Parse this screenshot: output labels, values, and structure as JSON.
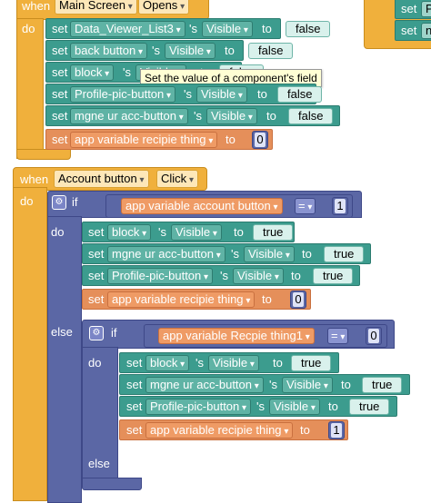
{
  "colors": {
    "event": "#f0b03c",
    "setter": "#3c9c8e",
    "variable": "#e58f5a",
    "control": "#5b67a5"
  },
  "kw": {
    "when": "when",
    "do": "do",
    "set": "set",
    "s": "'s",
    "to": "to",
    "if": "if",
    "else": "else"
  },
  "main_event": {
    "component": "Main Screen",
    "event": "Opens"
  },
  "main_actions": [
    {
      "component": "Data_Viewer_List3",
      "property": "Visible",
      "value": "false"
    },
    {
      "component": "back button",
      "property": "Visible",
      "value": "false"
    },
    {
      "component": "block",
      "property": "Visible",
      "value": "false"
    },
    {
      "component": "Profile-pic-button",
      "property": "Visible",
      "value": "false"
    },
    {
      "component": "mgne ur acc-button",
      "property": "Visible",
      "value": "false"
    }
  ],
  "main_var": {
    "name": "app variable recipie thing",
    "value": "0"
  },
  "tooltip": "Set the value of a component's field",
  "acc_event": {
    "component": "Account button",
    "event": "Click"
  },
  "if1": {
    "var": "app variable account button",
    "op": "=",
    "num": "1"
  },
  "if1_actions": [
    {
      "component": "block",
      "property": "Visible",
      "value": "true"
    },
    {
      "component": "mgne ur acc-button",
      "property": "Visible",
      "value": "true"
    },
    {
      "component": "Profile-pic-button",
      "property": "Visible",
      "value": "true"
    }
  ],
  "if1_var": {
    "name": "app variable recipie thing",
    "value": "0"
  },
  "if2": {
    "var": "app variable Recpie thing1",
    "op": "=",
    "num": "0"
  },
  "if2_actions": [
    {
      "component": "block",
      "property": "Visible",
      "value": "true"
    },
    {
      "component": "mgne ur acc-button",
      "property": "Visible",
      "value": "true"
    },
    {
      "component": "Profile-pic-button",
      "property": "Visible",
      "value": "true"
    }
  ],
  "if2_var": {
    "name": "app variable recipie thing",
    "value": "1"
  },
  "partial_block": {
    "kw1": "set",
    "frag1": "P",
    "kw2": "set",
    "frag2": "n"
  }
}
